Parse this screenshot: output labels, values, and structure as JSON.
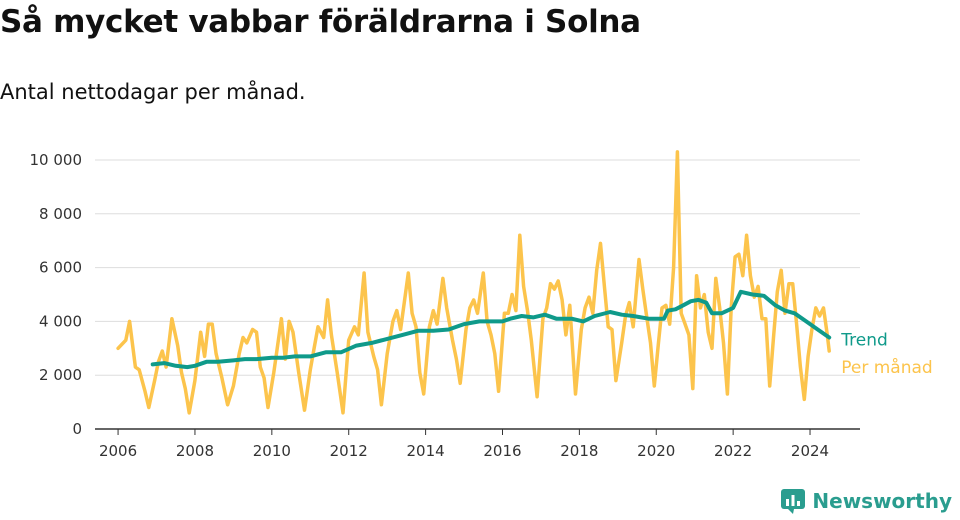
{
  "header": {
    "title": "Så mycket vabbar föräldrarna i Solna",
    "subtitle": "Antal nettodagar per månad."
  },
  "brand": {
    "name": "Newsworthy"
  },
  "colors": {
    "per_month": "#fcc44c",
    "trend": "#0f9a8a",
    "grid": "#dddddd",
    "axis": "#333333"
  },
  "chart_data": {
    "type": "line",
    "title": "Så mycket vabbar föräldrarna i Solna",
    "subtitle": "Antal nettodagar per månad.",
    "xlabel": "",
    "ylabel": "",
    "xlim": [
      2005.4,
      2025.3
    ],
    "ylim": [
      0,
      10000
    ],
    "x_ticks": [
      2006,
      2008,
      2010,
      2012,
      2014,
      2016,
      2018,
      2020,
      2022,
      2024
    ],
    "x_tick_labels": [
      "2006",
      "2008",
      "2010",
      "2012",
      "2014",
      "2016",
      "2018",
      "2020",
      "2022",
      "2024"
    ],
    "y_ticks": [
      0,
      2000,
      4000,
      6000,
      8000,
      10000
    ],
    "y_tick_labels": [
      "0",
      "2 000",
      "4 000",
      "6 000",
      "8 000",
      "10 000"
    ],
    "grid": "horizontal",
    "legend": "inline-right",
    "series": [
      {
        "name": "Per månad",
        "color": "#fcc44c",
        "points": [
          [
            2006.0,
            3000
          ],
          [
            2006.2,
            3300
          ],
          [
            2006.3,
            4000
          ],
          [
            2006.45,
            2300
          ],
          [
            2006.55,
            2200
          ],
          [
            2006.7,
            1400
          ],
          [
            2006.8,
            800
          ],
          [
            2006.95,
            1800
          ],
          [
            2007.05,
            2500
          ],
          [
            2007.15,
            2900
          ],
          [
            2007.25,
            2300
          ],
          [
            2007.4,
            4100
          ],
          [
            2007.55,
            3100
          ],
          [
            2007.65,
            2100
          ],
          [
            2007.75,
            1500
          ],
          [
            2007.85,
            600
          ],
          [
            2008.0,
            1800
          ],
          [
            2008.15,
            3600
          ],
          [
            2008.25,
            2700
          ],
          [
            2008.35,
            3900
          ],
          [
            2008.45,
            3900
          ],
          [
            2008.55,
            2800
          ],
          [
            2008.7,
            1900
          ],
          [
            2008.85,
            900
          ],
          [
            2009.0,
            1600
          ],
          [
            2009.15,
            2800
          ],
          [
            2009.25,
            3400
          ],
          [
            2009.35,
            3200
          ],
          [
            2009.5,
            3700
          ],
          [
            2009.6,
            3600
          ],
          [
            2009.7,
            2300
          ],
          [
            2009.8,
            1900
          ],
          [
            2009.9,
            800
          ],
          [
            2010.05,
            2100
          ],
          [
            2010.15,
            3100
          ],
          [
            2010.25,
            4100
          ],
          [
            2010.35,
            2600
          ],
          [
            2010.45,
            4000
          ],
          [
            2010.55,
            3600
          ],
          [
            2010.7,
            2100
          ],
          [
            2010.85,
            700
          ],
          [
            2011.0,
            2200
          ],
          [
            2011.1,
            3000
          ],
          [
            2011.2,
            3800
          ],
          [
            2011.35,
            3400
          ],
          [
            2011.45,
            4800
          ],
          [
            2011.55,
            3500
          ],
          [
            2011.7,
            2100
          ],
          [
            2011.85,
            600
          ],
          [
            2012.0,
            3300
          ],
          [
            2012.15,
            3800
          ],
          [
            2012.25,
            3500
          ],
          [
            2012.4,
            5800
          ],
          [
            2012.5,
            3600
          ],
          [
            2012.65,
            2700
          ],
          [
            2012.75,
            2200
          ],
          [
            2012.85,
            900
          ],
          [
            2013.0,
            2800
          ],
          [
            2013.15,
            4000
          ],
          [
            2013.25,
            4400
          ],
          [
            2013.35,
            3700
          ],
          [
            2013.55,
            5800
          ],
          [
            2013.65,
            4300
          ],
          [
            2013.75,
            3800
          ],
          [
            2013.85,
            2100
          ],
          [
            2013.95,
            1300
          ],
          [
            2014.1,
            3800
          ],
          [
            2014.2,
            4400
          ],
          [
            2014.3,
            3900
          ],
          [
            2014.45,
            5600
          ],
          [
            2014.55,
            4500
          ],
          [
            2014.7,
            3300
          ],
          [
            2014.8,
            2600
          ],
          [
            2014.9,
            1700
          ],
          [
            2015.05,
            3700
          ],
          [
            2015.15,
            4500
          ],
          [
            2015.25,
            4800
          ],
          [
            2015.35,
            4300
          ],
          [
            2015.5,
            5800
          ],
          [
            2015.6,
            4000
          ],
          [
            2015.7,
            3500
          ],
          [
            2015.8,
            2800
          ],
          [
            2015.9,
            1400
          ],
          [
            2016.05,
            4300
          ],
          [
            2016.15,
            4300
          ],
          [
            2016.25,
            5000
          ],
          [
            2016.35,
            4400
          ],
          [
            2016.45,
            7200
          ],
          [
            2016.55,
            5300
          ],
          [
            2016.65,
            4400
          ],
          [
            2016.75,
            3300
          ],
          [
            2016.9,
            1200
          ],
          [
            2017.05,
            4100
          ],
          [
            2017.15,
            4500
          ],
          [
            2017.25,
            5400
          ],
          [
            2017.35,
            5200
          ],
          [
            2017.45,
            5500
          ],
          [
            2017.55,
            4800
          ],
          [
            2017.65,
            3500
          ],
          [
            2017.75,
            4600
          ],
          [
            2017.9,
            1300
          ],
          [
            2018.05,
            3700
          ],
          [
            2018.15,
            4500
          ],
          [
            2018.25,
            4900
          ],
          [
            2018.35,
            4300
          ],
          [
            2018.45,
            5900
          ],
          [
            2018.55,
            6900
          ],
          [
            2018.65,
            5300
          ],
          [
            2018.75,
            3800
          ],
          [
            2018.85,
            3700
          ],
          [
            2018.95,
            1800
          ],
          [
            2019.1,
            3200
          ],
          [
            2019.2,
            4200
          ],
          [
            2019.3,
            4700
          ],
          [
            2019.4,
            3800
          ],
          [
            2019.55,
            6300
          ],
          [
            2019.65,
            5200
          ],
          [
            2019.75,
            4200
          ],
          [
            2019.85,
            3200
          ],
          [
            2019.95,
            1600
          ],
          [
            2020.05,
            3100
          ],
          [
            2020.15,
            4500
          ],
          [
            2020.25,
            4600
          ],
          [
            2020.35,
            3900
          ],
          [
            2020.45,
            6000
          ],
          [
            2020.55,
            10300
          ],
          [
            2020.65,
            4300
          ],
          [
            2020.75,
            3900
          ],
          [
            2020.85,
            3500
          ],
          [
            2020.95,
            1500
          ],
          [
            2021.05,
            5700
          ],
          [
            2021.15,
            4500
          ],
          [
            2021.25,
            5000
          ],
          [
            2021.35,
            3600
          ],
          [
            2021.45,
            3000
          ],
          [
            2021.55,
            5600
          ],
          [
            2021.65,
            4500
          ],
          [
            2021.75,
            3200
          ],
          [
            2021.85,
            1300
          ],
          [
            2021.95,
            4500
          ],
          [
            2022.05,
            6400
          ],
          [
            2022.15,
            6500
          ],
          [
            2022.25,
            5700
          ],
          [
            2022.35,
            7200
          ],
          [
            2022.45,
            5700
          ],
          [
            2022.55,
            4900
          ],
          [
            2022.65,
            5300
          ],
          [
            2022.75,
            4100
          ],
          [
            2022.85,
            4100
          ],
          [
            2022.95,
            1600
          ],
          [
            2023.05,
            3400
          ],
          [
            2023.15,
            5100
          ],
          [
            2023.25,
            5900
          ],
          [
            2023.35,
            4300
          ],
          [
            2023.45,
            5400
          ],
          [
            2023.55,
            5400
          ],
          [
            2023.65,
            3900
          ],
          [
            2023.75,
            2300
          ],
          [
            2023.85,
            1100
          ],
          [
            2023.95,
            2700
          ],
          [
            2024.05,
            3700
          ],
          [
            2024.15,
            4500
          ],
          [
            2024.25,
            4200
          ],
          [
            2024.35,
            4500
          ],
          [
            2024.45,
            3500
          ],
          [
            2024.5,
            2900
          ]
        ]
      },
      {
        "name": "Trend",
        "color": "#0f9a8a",
        "points": [
          [
            2006.9,
            2400
          ],
          [
            2007.2,
            2450
          ],
          [
            2007.5,
            2350
          ],
          [
            2007.8,
            2300
          ],
          [
            2008.0,
            2350
          ],
          [
            2008.3,
            2500
          ],
          [
            2008.6,
            2500
          ],
          [
            2009.0,
            2550
          ],
          [
            2009.3,
            2600
          ],
          [
            2009.6,
            2600
          ],
          [
            2010.0,
            2650
          ],
          [
            2010.3,
            2650
          ],
          [
            2010.6,
            2700
          ],
          [
            2011.0,
            2700
          ],
          [
            2011.4,
            2850
          ],
          [
            2011.8,
            2850
          ],
          [
            2012.2,
            3100
          ],
          [
            2012.6,
            3200
          ],
          [
            2013.0,
            3350
          ],
          [
            2013.4,
            3500
          ],
          [
            2013.8,
            3650
          ],
          [
            2014.2,
            3650
          ],
          [
            2014.6,
            3700
          ],
          [
            2015.0,
            3900
          ],
          [
            2015.4,
            4000
          ],
          [
            2015.8,
            4000
          ],
          [
            2016.0,
            4000
          ],
          [
            2016.2,
            4100
          ],
          [
            2016.5,
            4200
          ],
          [
            2016.8,
            4150
          ],
          [
            2017.1,
            4250
          ],
          [
            2017.4,
            4100
          ],
          [
            2017.8,
            4100
          ],
          [
            2018.1,
            4000
          ],
          [
            2018.4,
            4200
          ],
          [
            2018.8,
            4350
          ],
          [
            2019.1,
            4250
          ],
          [
            2019.4,
            4200
          ],
          [
            2019.8,
            4100
          ],
          [
            2020.2,
            4100
          ],
          [
            2020.3,
            4400
          ],
          [
            2020.5,
            4450
          ],
          [
            2020.7,
            4600
          ],
          [
            2020.9,
            4750
          ],
          [
            2021.1,
            4800
          ],
          [
            2021.3,
            4700
          ],
          [
            2021.45,
            4300
          ],
          [
            2021.7,
            4300
          ],
          [
            2022.0,
            4500
          ],
          [
            2022.2,
            5100
          ],
          [
            2022.5,
            5000
          ],
          [
            2022.8,
            4950
          ],
          [
            2023.1,
            4600
          ],
          [
            2023.35,
            4400
          ],
          [
            2023.6,
            4300
          ],
          [
            2023.9,
            4000
          ],
          [
            2024.2,
            3700
          ],
          [
            2024.5,
            3400
          ]
        ]
      }
    ]
  }
}
